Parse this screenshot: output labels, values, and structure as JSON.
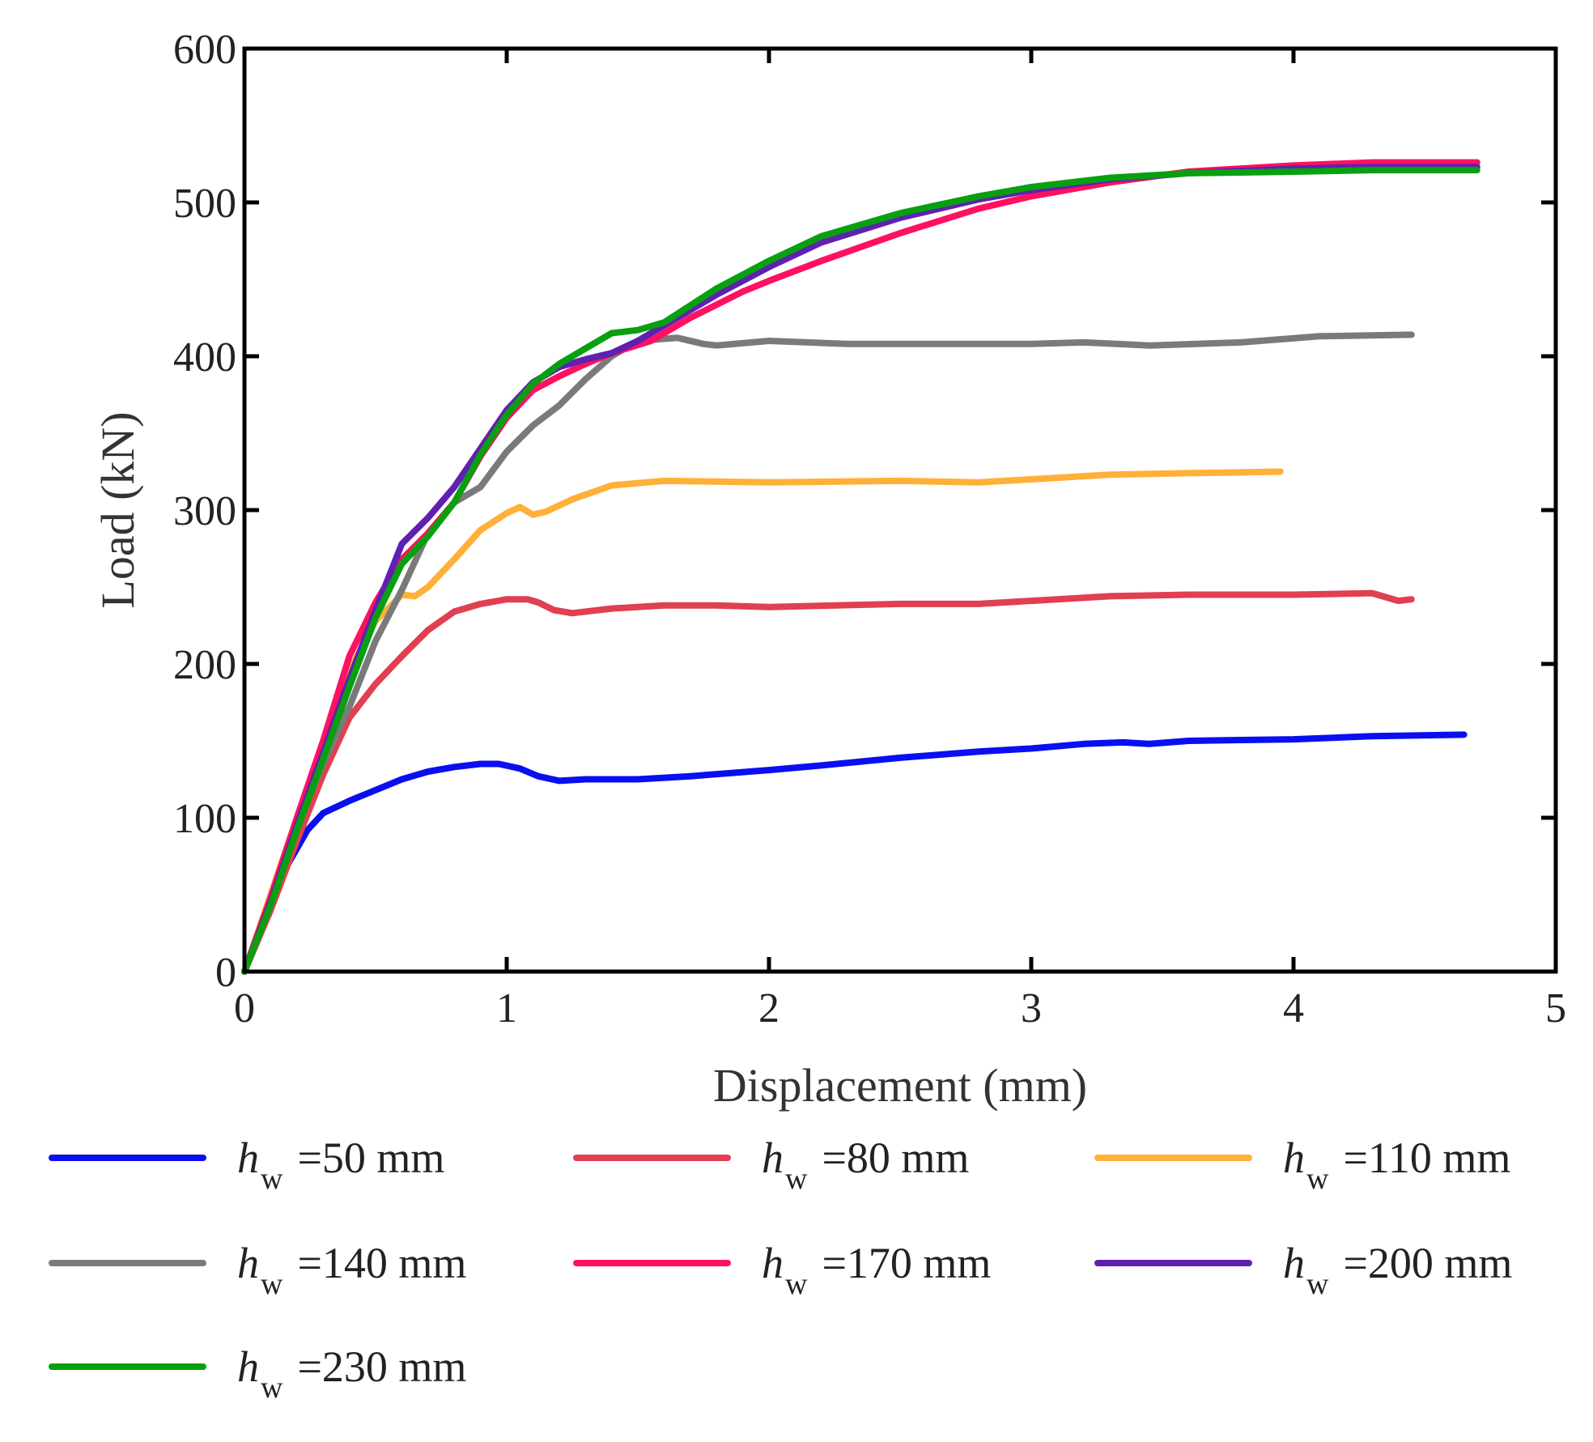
{
  "chart_data": {
    "type": "line",
    "title": "",
    "xlabel": "Displacement (mm)",
    "ylabel": "Load (kN)",
    "xlim": [
      0,
      5
    ],
    "ylim": [
      0,
      600
    ],
    "xticks": [
      "0",
      "1",
      "2",
      "3",
      "4",
      "5"
    ],
    "yticks": [
      "0",
      "100",
      "200",
      "300",
      "400",
      "500",
      "600"
    ],
    "grid": false,
    "legend_position": "bottom",
    "legend_symbol": "h",
    "legend_subscript": "w",
    "series": [
      {
        "name": "=50 mm",
        "color": "#0a0ff0",
        "x": [
          0,
          0.08,
          0.16,
          0.24,
          0.3,
          0.4,
          0.5,
          0.6,
          0.7,
          0.8,
          0.9,
          0.97,
          1.05,
          1.12,
          1.2,
          1.3,
          1.5,
          1.7,
          2.0,
          2.2,
          2.5,
          2.8,
          3.0,
          3.2,
          3.35,
          3.45,
          3.6,
          4.0,
          4.3,
          4.65
        ],
        "y": [
          0,
          35,
          68,
          92,
          103,
          111,
          118,
          125,
          130,
          133,
          135,
          135,
          132,
          127,
          124,
          125,
          125,
          127,
          131,
          134,
          139,
          143,
          145,
          148,
          149,
          148,
          150,
          151,
          153,
          154
        ]
      },
      {
        "name": "=80 mm",
        "color": "#e04050",
        "x": [
          0,
          0.1,
          0.2,
          0.3,
          0.4,
          0.5,
          0.6,
          0.7,
          0.8,
          0.9,
          1.0,
          1.08,
          1.12,
          1.18,
          1.25,
          1.4,
          1.6,
          1.8,
          2.0,
          2.5,
          2.8,
          3.0,
          3.3,
          3.6,
          4.0,
          4.3,
          4.4,
          4.45
        ],
        "y": [
          0,
          40,
          85,
          128,
          165,
          187,
          205,
          222,
          234,
          239,
          242,
          242,
          240,
          235,
          233,
          236,
          238,
          238,
          237,
          239,
          239,
          241,
          244,
          245,
          245,
          246,
          241,
          242
        ]
      },
      {
        "name": "=110 mm",
        "color": "#ffb038",
        "x": [
          0,
          0.1,
          0.2,
          0.3,
          0.4,
          0.5,
          0.6,
          0.65,
          0.7,
          0.8,
          0.9,
          1.0,
          1.05,
          1.1,
          1.15,
          1.25,
          1.4,
          1.6,
          2.0,
          2.5,
          2.8,
          3.0,
          3.3,
          3.6,
          3.95
        ],
        "y": [
          0,
          50,
          100,
          148,
          195,
          228,
          245,
          244,
          250,
          268,
          287,
          298,
          302,
          297,
          299,
          307,
          316,
          319,
          318,
          319,
          318,
          320,
          323,
          324,
          325
        ]
      },
      {
        "name": "=140 mm",
        "color": "#7a7a7a",
        "x": [
          0,
          0.1,
          0.2,
          0.3,
          0.4,
          0.5,
          0.6,
          0.7,
          0.8,
          0.9,
          1.0,
          1.1,
          1.2,
          1.3,
          1.4,
          1.5,
          1.65,
          1.75,
          1.8,
          2.0,
          2.3,
          2.7,
          3.0,
          3.2,
          3.45,
          3.8,
          4.1,
          4.45
        ],
        "y": [
          0,
          45,
          95,
          135,
          172,
          215,
          248,
          285,
          305,
          315,
          338,
          355,
          368,
          385,
          400,
          410,
          412,
          408,
          407,
          410,
          408,
          408,
          408,
          409,
          407,
          409,
          413,
          414
        ]
      },
      {
        "name": "=170 mm",
        "color": "#ff1060",
        "x": [
          0,
          0.1,
          0.2,
          0.3,
          0.4,
          0.5,
          0.6,
          0.7,
          0.8,
          0.9,
          1.0,
          1.1,
          1.2,
          1.3,
          1.4,
          1.55,
          1.7,
          1.9,
          2.0,
          2.2,
          2.5,
          2.8,
          3.0,
          3.3,
          3.6,
          4.0,
          4.3,
          4.7
        ],
        "y": [
          0,
          48,
          100,
          150,
          205,
          240,
          268,
          285,
          305,
          335,
          360,
          378,
          387,
          395,
          402,
          410,
          425,
          442,
          449,
          462,
          480,
          496,
          504,
          513,
          520,
          524,
          526,
          526
        ]
      },
      {
        "name": "=200 mm",
        "color": "#6020b0",
        "x": [
          0,
          0.1,
          0.2,
          0.3,
          0.4,
          0.5,
          0.6,
          0.7,
          0.8,
          0.9,
          1.0,
          1.1,
          1.2,
          1.3,
          1.4,
          1.5,
          1.6,
          1.8,
          2.0,
          2.2,
          2.5,
          2.8,
          3.0,
          3.3,
          3.6,
          4.0,
          4.3,
          4.7
        ],
        "y": [
          0,
          45,
          95,
          142,
          190,
          235,
          278,
          295,
          315,
          340,
          365,
          383,
          393,
          398,
          402,
          410,
          420,
          440,
          458,
          474,
          490,
          502,
          508,
          515,
          519,
          522,
          523,
          523
        ]
      },
      {
        "name": "=230 mm",
        "color": "#08a010",
        "x": [
          0,
          0.1,
          0.2,
          0.3,
          0.4,
          0.5,
          0.6,
          0.7,
          0.8,
          0.9,
          1.0,
          1.1,
          1.2,
          1.3,
          1.4,
          1.5,
          1.6,
          1.8,
          2.0,
          2.2,
          2.5,
          2.8,
          3.0,
          3.3,
          3.6,
          4.0,
          4.3,
          4.7
        ],
        "y": [
          0,
          43,
          92,
          138,
          185,
          230,
          265,
          283,
          305,
          336,
          362,
          382,
          395,
          405,
          415,
          417,
          422,
          444,
          462,
          478,
          493,
          504,
          510,
          516,
          519,
          520,
          521,
          521
        ]
      }
    ]
  }
}
